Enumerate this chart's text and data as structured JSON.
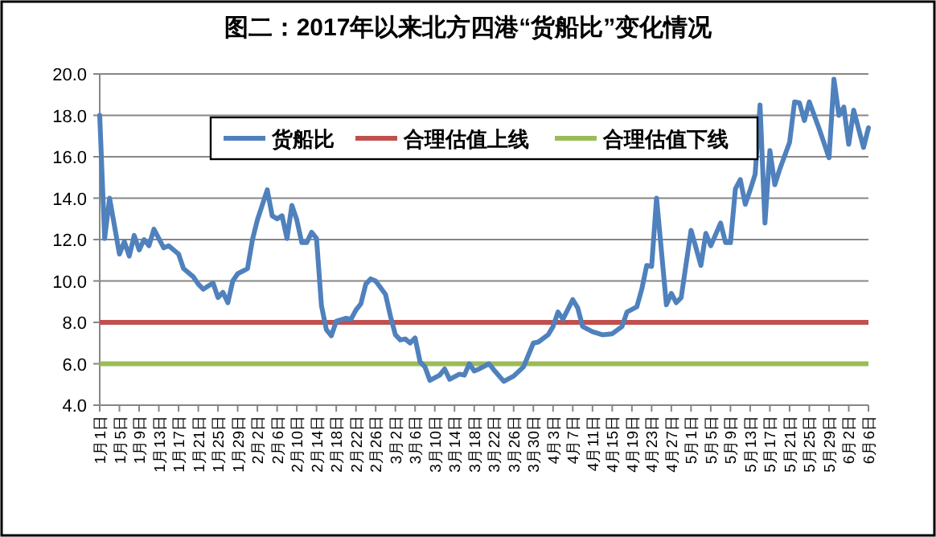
{
  "chart_data": {
    "type": "line",
    "title": "图二：2017年以来北方四港“货船比”变化情况",
    "x": [
      "--01-01",
      "--01-02",
      "--01-03",
      "--01-05",
      "--01-06",
      "--01-07",
      "--01-08",
      "--01-09",
      "--01-10",
      "--01-11",
      "--01-12",
      "--01-14",
      "--01-15",
      "--01-17",
      "--01-18",
      "--01-20",
      "--01-21",
      "--01-22",
      "--01-24",
      "--01-25",
      "--01-26",
      "--01-27",
      "--01-28",
      "--01-29",
      "--01-31",
      "--02-01",
      "--02-02",
      "--02-04",
      "--02-05",
      "--02-06",
      "--02-07",
      "--02-08",
      "--02-09",
      "--02-10",
      "--02-11",
      "--02-12",
      "--02-13",
      "--02-14",
      "--02-15",
      "--02-16",
      "--02-17",
      "--02-18",
      "--02-20",
      "--02-21",
      "--02-22",
      "--02-23",
      "--02-24",
      "--02-25",
      "--02-26",
      "--02-28",
      "--03-01",
      "--03-02",
      "--03-03",
      "--03-04",
      "--03-05",
      "--03-06",
      "--03-07",
      "--03-08",
      "--03-09",
      "--03-11",
      "--03-12",
      "--03-13",
      "--03-15",
      "--03-16",
      "--03-17",
      "--03-18",
      "--03-19",
      "--03-21",
      "--03-22",
      "--03-24",
      "--03-26",
      "--03-28",
      "--03-30",
      "--03-31",
      "--04-02",
      "--04-03",
      "--04-04",
      "--04-05",
      "--04-07",
      "--04-08",
      "--04-09",
      "--04-11",
      "--04-13",
      "--04-15",
      "--04-17",
      "--04-18",
      "--04-20",
      "--04-21",
      "--04-22",
      "--04-23",
      "--04-24",
      "--04-26",
      "--04-27",
      "--04-28",
      "--04-29",
      "--05-01",
      "--05-03",
      "--05-04",
      "--05-05",
      "--05-07",
      "--05-08",
      "--05-09",
      "--05-10",
      "--05-11",
      "--05-12",
      "--05-13",
      "--05-14",
      "--05-15",
      "--05-16",
      "--05-17",
      "--05-18",
      "--05-19",
      "--05-21",
      "--05-22",
      "--05-23",
      "--05-24",
      "--05-25",
      "--05-27",
      "--05-29",
      "--05-30",
      "--05-31",
      "--06-01",
      "--06-02",
      "--06-03",
      "--06-05",
      "--06-06"
    ],
    "series": [
      {
        "name": "货船比",
        "color": "#4f81bd",
        "values": [
          18.0,
          12.05,
          14.0,
          11.3,
          11.9,
          11.2,
          12.2,
          11.5,
          12.0,
          11.7,
          12.5,
          11.6,
          11.7,
          11.3,
          10.6,
          10.2,
          9.85,
          9.6,
          9.9,
          9.2,
          9.45,
          8.95,
          10.0,
          10.35,
          10.6,
          12.0,
          12.95,
          14.4,
          13.15,
          13.0,
          13.15,
          12.05,
          13.65,
          12.95,
          11.85,
          11.85,
          12.35,
          12.05,
          8.8,
          7.65,
          7.35,
          8.05,
          8.2,
          8.15,
          8.6,
          8.9,
          9.85,
          10.1,
          10.0,
          9.35,
          8.3,
          7.4,
          7.15,
          7.2,
          7.0,
          7.25,
          6.1,
          5.85,
          5.2,
          5.45,
          5.75,
          5.25,
          5.5,
          5.45,
          6.0,
          5.65,
          5.75,
          6.0,
          5.7,
          5.15,
          5.4,
          5.85,
          7.0,
          7.05,
          7.4,
          7.8,
          8.5,
          8.15,
          9.1,
          8.7,
          7.8,
          7.55,
          7.4,
          7.45,
          7.8,
          8.5,
          8.75,
          9.6,
          10.75,
          10.7,
          14.0,
          8.85,
          9.4,
          8.95,
          9.2,
          12.45,
          10.75,
          12.3,
          11.7,
          12.8,
          11.85,
          11.85,
          14.45,
          14.9,
          13.7,
          14.4,
          15.15,
          18.5,
          12.8,
          16.3,
          14.65,
          15.4,
          16.7,
          18.65,
          18.6,
          17.75,
          18.65,
          17.35,
          15.95,
          19.75,
          18.0,
          18.4,
          16.6,
          18.25,
          16.45,
          17.4
        ]
      }
    ],
    "ref_lines": [
      {
        "axis": "y",
        "value": 8,
        "label": "合理估值上线",
        "color": "#c0504d"
      },
      {
        "axis": "y",
        "value": 6,
        "label": "合理估值下线",
        "color": "#9bbb59"
      }
    ],
    "xlim": [
      "--01-01",
      "--06-06"
    ],
    "xticks": [
      {
        "value": "--01-01",
        "label": "1月1日"
      },
      {
        "value": "--01-05",
        "label": "1月5日"
      },
      {
        "value": "--01-09",
        "label": "1月9日"
      },
      {
        "value": "--01-13",
        "label": "1月13日"
      },
      {
        "value": "--01-17",
        "label": "1月17日"
      },
      {
        "value": "--01-21",
        "label": "1月21日"
      },
      {
        "value": "--01-25",
        "label": "1月25日"
      },
      {
        "value": "--01-29",
        "label": "1月29日"
      },
      {
        "value": "--02-02",
        "label": "2月2日"
      },
      {
        "value": "--02-06",
        "label": "2月6日"
      },
      {
        "value": "--02-10",
        "label": "2月10日"
      },
      {
        "value": "--02-14",
        "label": "2月14日"
      },
      {
        "value": "--02-18",
        "label": "2月18日"
      },
      {
        "value": "--02-22",
        "label": "2月22日"
      },
      {
        "value": "--02-26",
        "label": "2月26日"
      },
      {
        "value": "--03-02",
        "label": "3月2日"
      },
      {
        "value": "--03-06",
        "label": "3月6日"
      },
      {
        "value": "--03-10",
        "label": "3月10日"
      },
      {
        "value": "--03-14",
        "label": "3月14日"
      },
      {
        "value": "--03-18",
        "label": "3月18日"
      },
      {
        "value": "--03-22",
        "label": "3月22日"
      },
      {
        "value": "--03-26",
        "label": "3月26日"
      },
      {
        "value": "--03-30",
        "label": "3月30日"
      },
      {
        "value": "--04-03",
        "label": "4月3日"
      },
      {
        "value": "--04-07",
        "label": "4月7日"
      },
      {
        "value": "--04-11",
        "label": "4月11日"
      },
      {
        "value": "--04-15",
        "label": "4月15日"
      },
      {
        "value": "--04-19",
        "label": "4月19日"
      },
      {
        "value": "--04-23",
        "label": "4月23日"
      },
      {
        "value": "--04-27",
        "label": "4月27日"
      },
      {
        "value": "--05-01",
        "label": "5月1日"
      },
      {
        "value": "--05-05",
        "label": "5月5日"
      },
      {
        "value": "--05-09",
        "label": "5月9日"
      },
      {
        "value": "--05-13",
        "label": "5月13日"
      },
      {
        "value": "--05-17",
        "label": "5月17日"
      },
      {
        "value": "--05-21",
        "label": "5月21日"
      },
      {
        "value": "--05-25",
        "label": "5月25日"
      },
      {
        "value": "--05-29",
        "label": "5月29日"
      },
      {
        "value": "--06-02",
        "label": "6月2日"
      },
      {
        "value": "--06-06",
        "label": "6月6日"
      }
    ],
    "ylim": [
      4,
      20
    ],
    "yticks": [
      {
        "value": 4,
        "label": "4.0"
      },
      {
        "value": 6,
        "label": "6.0"
      },
      {
        "value": 8,
        "label": "8.0"
      },
      {
        "value": 10,
        "label": "10.0"
      },
      {
        "value": 12,
        "label": "12.0"
      },
      {
        "value": 14,
        "label": "14.0"
      },
      {
        "value": 16,
        "label": "16.0"
      },
      {
        "value": 18,
        "label": "18.0"
      },
      {
        "value": 20,
        "label": "20.0"
      }
    ],
    "grid": "y",
    "legend": "top",
    "marker": "none",
    "line_style": "solid"
  }
}
